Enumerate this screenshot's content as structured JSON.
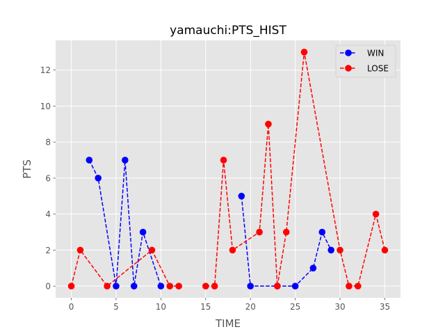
{
  "chart_data": {
    "type": "line",
    "title": "yamauchi:PTS_HIST",
    "xlabel": "TIME",
    "ylabel": "PTS",
    "xlim": [
      -1.75,
      36.75
    ],
    "ylim": [
      -0.65,
      13.65
    ],
    "xticks": [
      0,
      5,
      10,
      15,
      20,
      25,
      30,
      35
    ],
    "yticks": [
      0,
      2,
      4,
      6,
      8,
      10,
      12
    ],
    "grid": true,
    "legend_position": "top-right",
    "series": [
      {
        "name": "WIN",
        "color": "#0000ff",
        "linestyle": "dashed",
        "marker": "circle",
        "segments": [
          {
            "x": [
              2,
              3,
              5,
              6,
              7,
              8,
              10
            ],
            "y": [
              7,
              6,
              0,
              7,
              0,
              3,
              0
            ]
          },
          {
            "x": [
              19,
              20,
              23,
              25,
              27,
              28,
              29
            ],
            "y": [
              5,
              0,
              0,
              0,
              1,
              3,
              2
            ]
          }
        ]
      },
      {
        "name": "LOSE",
        "color": "#ff0000",
        "linestyle": "dashed",
        "marker": "circle",
        "segments": [
          {
            "x": [
              0,
              1,
              4,
              9,
              11,
              12
            ],
            "y": [
              0,
              2,
              0,
              2,
              0,
              0
            ]
          },
          {
            "x": [
              15,
              16,
              17,
              18,
              21,
              22,
              23,
              24,
              26,
              30,
              31,
              32,
              34,
              35
            ],
            "y": [
              0,
              0,
              7,
              2,
              3,
              9,
              0,
              3,
              13,
              2,
              0,
              0,
              4,
              2
            ]
          }
        ]
      }
    ]
  }
}
